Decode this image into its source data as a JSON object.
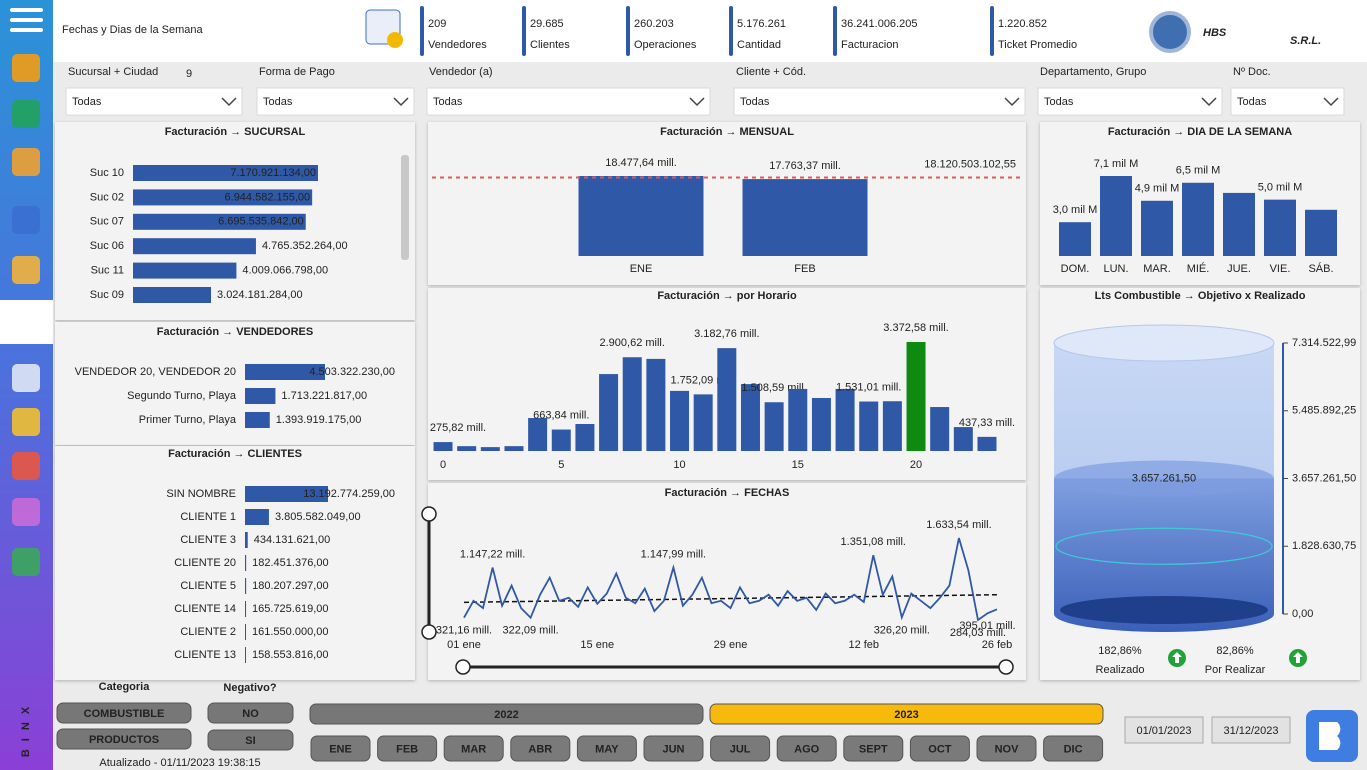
{
  "header": {
    "title": "Fechas y Dias de la Semana",
    "logo": "HBS",
    "logo_suffix": "S.R.L."
  },
  "kpis": [
    {
      "value": "209",
      "label": "Vendedores"
    },
    {
      "value": "29.685",
      "label": "Clientes"
    },
    {
      "value": "260.203",
      "label": "Operaciones"
    },
    {
      "value": "5.176.261",
      "label": "Cantidad"
    },
    {
      "value": "36.241.006.205",
      "label": "Facturacion"
    },
    {
      "value": "1.220.852",
      "label": "Ticket Promedio"
    }
  ],
  "filters": [
    {
      "label": "Sucursal + Ciudad",
      "badge": "9",
      "value": "Todas"
    },
    {
      "label": "Forma de Pago",
      "value": "Todas"
    },
    {
      "label": "Vendedor (a)",
      "value": "Todas"
    },
    {
      "label": "Cliente + Cód.",
      "value": "Todas"
    },
    {
      "label": "Departamento, Grupo",
      "value": "Todas"
    },
    {
      "label": "Nº Doc.",
      "value": "Todas"
    }
  ],
  "chart_data": [
    {
      "type": "hbar",
      "title": "Facturación → SUCURSAL",
      "color": "#2f59a6",
      "categories": [
        "Suc 10",
        "Suc 02",
        "Suc 07",
        "Suc 06",
        "Suc 11",
        "Suc 09"
      ],
      "values": [
        7170921134,
        6944582155,
        6695535842,
        4765352264,
        4009066798,
        3024181284
      ],
      "value_labels": [
        "7.170.921.134,00",
        "6.944.582.155,00",
        "6.695.535.842,00",
        "4.765.352.264,00",
        "4.009.066.798,00",
        "3.024.181.284,00"
      ]
    },
    {
      "type": "hbar",
      "title": "Facturación → VENDEDORES",
      "color": "#2f59a6",
      "categories": [
        "VENDEDOR 20, VENDEDOR 20",
        "Segundo Turno, Playa",
        "Primer Turno, Playa"
      ],
      "values": [
        4503322230,
        1713221817,
        1393919175
      ],
      "value_labels": [
        "4.503.322.230,00",
        "1.713.221.817,00",
        "1.393.919.175,00"
      ]
    },
    {
      "type": "hbar",
      "title": "Facturación → CLIENTES",
      "color": "#2f59a6",
      "categories": [
        "SIN NOMBRE",
        "CLIENTE 1",
        "CLIENTE 3",
        "CLIENTE 20",
        "CLIENTE 5",
        "CLIENTE 14",
        "CLIENTE 2",
        "CLIENTE 13"
      ],
      "values": [
        13192774259,
        3805582049,
        434131621,
        182451376,
        180207297,
        165725619,
        161550000,
        158553816
      ],
      "value_labels": [
        "13.192.774.259,00",
        "3.805.582.049,00",
        "434.131.621,00",
        "182.451.376,00",
        "180.207.297,00",
        "165.725.619,00",
        "161.550.000,00",
        "158.553.816,00"
      ]
    },
    {
      "type": "bar",
      "title": "Facturación → MENSUAL",
      "color": "#2f59a6",
      "categories": [
        "ENE",
        "FEB"
      ],
      "values": [
        18477.64,
        17763.37
      ],
      "value_labels": [
        "18.477,64 mill.",
        "17.763,37 mill."
      ],
      "reference_line": {
        "value": 18120.50310255,
        "label": "18.120.503.102,55",
        "color": "#e0575b"
      }
    },
    {
      "type": "bar",
      "title": "Facturación → por Horario",
      "color": "#2f59a6",
      "x": [
        0,
        1,
        2,
        3,
        4,
        5,
        6,
        7,
        8,
        9,
        10,
        11,
        12,
        13,
        14,
        15,
        16,
        17,
        18,
        19,
        20,
        21,
        22,
        23
      ],
      "xlim": [
        -0.5,
        23.5
      ],
      "xticks": [
        0,
        5,
        10,
        15,
        20
      ],
      "values": [
        275.82,
        150,
        120,
        150,
        1020,
        663.84,
        835,
        2380,
        2900.62,
        2850,
        1860,
        1752.09,
        3182.76,
        2070,
        1508.59,
        1920,
        1640,
        1920,
        1531.01,
        1540,
        3372.58,
        1360,
        740,
        437.33
      ],
      "value_labels": [
        "275,82 mill.",
        null,
        null,
        null,
        null,
        "663,84 mill.",
        null,
        null,
        "2.900,62 mill.",
        null,
        null,
        "1.752,09 mill.",
        "3.182,76 mill.",
        null,
        "1.508,59 mill.",
        null,
        null,
        null,
        "1.531,01 mill.",
        null,
        "3.372,58 mill.",
        null,
        null,
        "437,33 mill."
      ],
      "colors": [
        "#2f59a6",
        "#2f59a6",
        "#2f59a6",
        "#2f59a6",
        "#2f59a6",
        "#2f59a6",
        "#2f59a6",
        "#2f59a6",
        "#2f59a6",
        "#2f59a6",
        "#2f59a6",
        "#2f59a6",
        "#2f59a6",
        "#2f59a6",
        "#2f59a6",
        "#2f59a6",
        "#2f59a6",
        "#2f59a6",
        "#2f59a6",
        "#2f59a6",
        "#0f8a10",
        "#2f59a6",
        "#2f59a6",
        "#2f59a6"
      ]
    },
    {
      "type": "line",
      "title": "Facturación → FECHAS",
      "color": "#2f59a6",
      "x": [
        1,
        2,
        3,
        4,
        5,
        6,
        7,
        8,
        9,
        10,
        11,
        12,
        13,
        14,
        15,
        16,
        17,
        18,
        19,
        20,
        21,
        22,
        23,
        24,
        25,
        26,
        27,
        28,
        29,
        30,
        31,
        32,
        33,
        34,
        35,
        36,
        37,
        38,
        39,
        40,
        41,
        42,
        43,
        44,
        45,
        46,
        47,
        48,
        49,
        50,
        51,
        52,
        53,
        54,
        55,
        56,
        57
      ],
      "xlim": [
        1,
        57
      ],
      "xticks": [
        {
          "value": 1,
          "label": "01 ene"
        },
        {
          "value": 15,
          "label": "15 ene"
        },
        {
          "value": 29,
          "label": "29 ene"
        },
        {
          "value": 43,
          "label": "12 feb"
        },
        {
          "value": 57,
          "label": "26 feb"
        }
      ],
      "values": [
        321.16,
        600,
        480,
        1147.22,
        520,
        850,
        480,
        322.09,
        700,
        980,
        600,
        650,
        500,
        820,
        550,
        720,
        1050,
        650,
        560,
        800,
        430,
        600,
        1147.99,
        520,
        700,
        980,
        560,
        600,
        480,
        820,
        560,
        600,
        700,
        520,
        760,
        600,
        650,
        450,
        720,
        560,
        600,
        700,
        580,
        1351.08,
        700,
        1000,
        326.2,
        720,
        600,
        480,
        650,
        850,
        1633.54,
        1100,
        284.03,
        395.01,
        460
      ],
      "value_labels": [
        "321,16 mill.",
        null,
        null,
        "1.147,22 mill.",
        null,
        null,
        null,
        "322,09 mill.",
        null,
        null,
        null,
        null,
        null,
        null,
        null,
        null,
        null,
        null,
        null,
        null,
        null,
        null,
        "1.147,99 mill.",
        null,
        null,
        null,
        null,
        null,
        null,
        null,
        null,
        null,
        null,
        null,
        null,
        null,
        null,
        null,
        null,
        null,
        null,
        null,
        null,
        "1.351,08 mill.",
        null,
        null,
        "326,20 mill.",
        null,
        null,
        null,
        null,
        null,
        "1.633,54 mill.",
        null,
        "284,03 mill.",
        "395,01 mill.",
        null
      ],
      "trend": {
        "values": [
          575,
          700
        ],
        "color": "#111111"
      }
    },
    {
      "type": "bar",
      "title": "Facturación → DIA DE LA SEMANA",
      "color": "#2f59a6",
      "categories": [
        "DOM.",
        "LUN.",
        "MAR.",
        "MIÉ.",
        "JUE.",
        "VIE.",
        "SÁB."
      ],
      "values": [
        3.0,
        7.1,
        4.9,
        6.5,
        5.6,
        5.0,
        4.1
      ],
      "value_labels": [
        "3,0 mil M",
        "7,1 mil M",
        "4,9 mil M",
        "6,5 mil M",
        null,
        "5,0 mil M",
        null
      ]
    },
    {
      "type": "tank",
      "title": "Lts Combustible → Objetivo x Realizado",
      "color": "#5a7fd0",
      "value": 3657261.5,
      "value_label": "3.657.261,50",
      "ylim": [
        0,
        7314522.99
      ],
      "yticks": [
        {
          "value": 0,
          "label": "0,00"
        },
        {
          "value": 1828630.75,
          "label": "1.828.630,75"
        },
        {
          "value": 3657261.5,
          "label": "3.657.261,50"
        },
        {
          "value": 5485892.25,
          "label": "5.485.892,25"
        },
        {
          "value": 7314522.99,
          "label": "7.314.522,99"
        }
      ],
      "stats": [
        {
          "value": "182,86%",
          "label": "Realizado"
        },
        {
          "value": "82,86%",
          "label": "Por Realizar"
        }
      ]
    }
  ],
  "bottom": {
    "categoria_title": "Categoria",
    "categorias": [
      "COMBUSTIBLE",
      "PRODUCTOS"
    ],
    "negativo_title": "Negativo?",
    "negativo": [
      "NO",
      "SI"
    ],
    "years": [
      "2022",
      "2023"
    ],
    "selected_year": "2023",
    "months": [
      "ENE",
      "FEB",
      "MAR",
      "ABR",
      "MAY",
      "JUN",
      "JUL",
      "AGO",
      "SEPT",
      "OCT",
      "NOV",
      "DIC"
    ],
    "date_from": "01/01/2023",
    "date_to": "31/12/2023",
    "updated": "Atualizado - 01/11/2023 19:38:15"
  },
  "sidebar": {
    "brand": "BINX"
  }
}
